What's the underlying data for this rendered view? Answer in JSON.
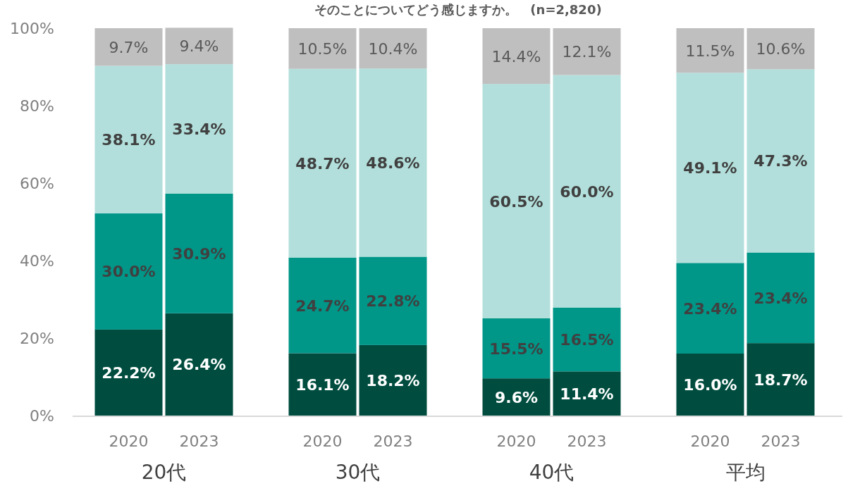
{
  "chart_data": {
    "type": "bar",
    "stacked": true,
    "title": "そのことについてどう感じますか。　(n=2,820)",
    "categories": [
      "2020",
      "2023",
      "2020",
      "2023",
      "2020",
      "2023",
      "2020",
      "2023"
    ],
    "annotations": [
      "20代",
      "30代",
      "40代",
      "平均"
    ],
    "ylim": [
      0,
      100
    ],
    "yticks": [
      {
        "value": 0,
        "label": "0%"
      },
      {
        "value": 20,
        "label": "20%"
      },
      {
        "value": 40,
        "label": "40%"
      },
      {
        "value": 60,
        "label": "60%"
      },
      {
        "value": 80,
        "label": "80%"
      },
      {
        "value": 100,
        "label": "100%"
      }
    ],
    "series": [
      {
        "color": "#004d3f",
        "values": [
          22.2,
          26.4,
          16.1,
          18.2,
          9.6,
          11.4,
          16.0,
          18.7
        ],
        "value_labels": [
          "22.2%",
          "26.4%",
          "16.1%",
          "18.2%",
          "9.6%",
          "11.4%",
          "16.0%",
          "18.7%"
        ]
      },
      {
        "color": "#009688",
        "values": [
          30.0,
          30.9,
          24.7,
          22.8,
          15.5,
          16.5,
          23.4,
          23.4
        ],
        "value_labels": [
          "30.0%",
          "30.9%",
          "24.7%",
          "22.8%",
          "15.5%",
          "16.5%",
          "23.4%",
          "23.4%"
        ]
      },
      {
        "color": "#b2dfdb",
        "values": [
          38.1,
          33.4,
          48.7,
          48.6,
          60.5,
          60.0,
          49.1,
          47.3
        ],
        "value_labels": [
          "38.1%",
          "33.4%",
          "48.7%",
          "48.6%",
          "60.5%",
          "60.0%",
          "49.1%",
          "47.3%"
        ]
      },
      {
        "color": "#bfbfbf",
        "values": [
          9.7,
          9.4,
          10.5,
          10.4,
          14.4,
          12.1,
          11.5,
          10.6
        ],
        "value_labels": [
          "9.7%",
          "9.4%",
          "10.5%",
          "10.4%",
          "14.4%",
          "12.1%",
          "11.5%",
          "10.6%"
        ]
      }
    ]
  }
}
